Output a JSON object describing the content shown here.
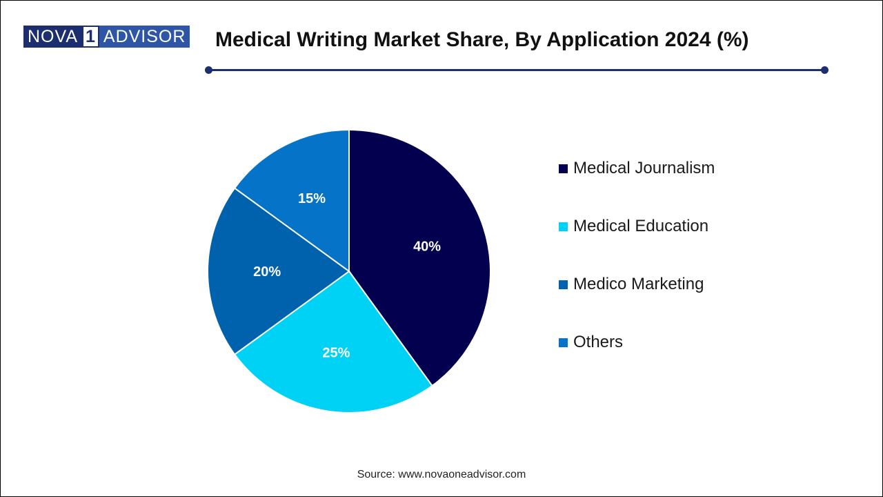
{
  "logo": {
    "part1": "NOVA",
    "part2": "1",
    "part3": "ADVISOR"
  },
  "header": {
    "title": "Medical Writing Market Share, By Application 2024 (%)"
  },
  "colors": {
    "accent": "#1c2e6e"
  },
  "chart_data": {
    "type": "pie",
    "title": "Medical Writing Market Share, By Application 2024 (%)",
    "categories": [
      "Medical Journalism",
      "Medical Education",
      "Medico Marketing",
      "Others"
    ],
    "values": [
      40,
      25,
      20,
      15
    ],
    "labels": [
      "40%",
      "25%",
      "20%",
      "15%"
    ],
    "colors": [
      "#03004f",
      "#00d2f5",
      "#0062ad",
      "#0473c8"
    ],
    "legend_position": "right"
  },
  "footer": {
    "source": "Source: www.novaoneadvisor.com"
  }
}
